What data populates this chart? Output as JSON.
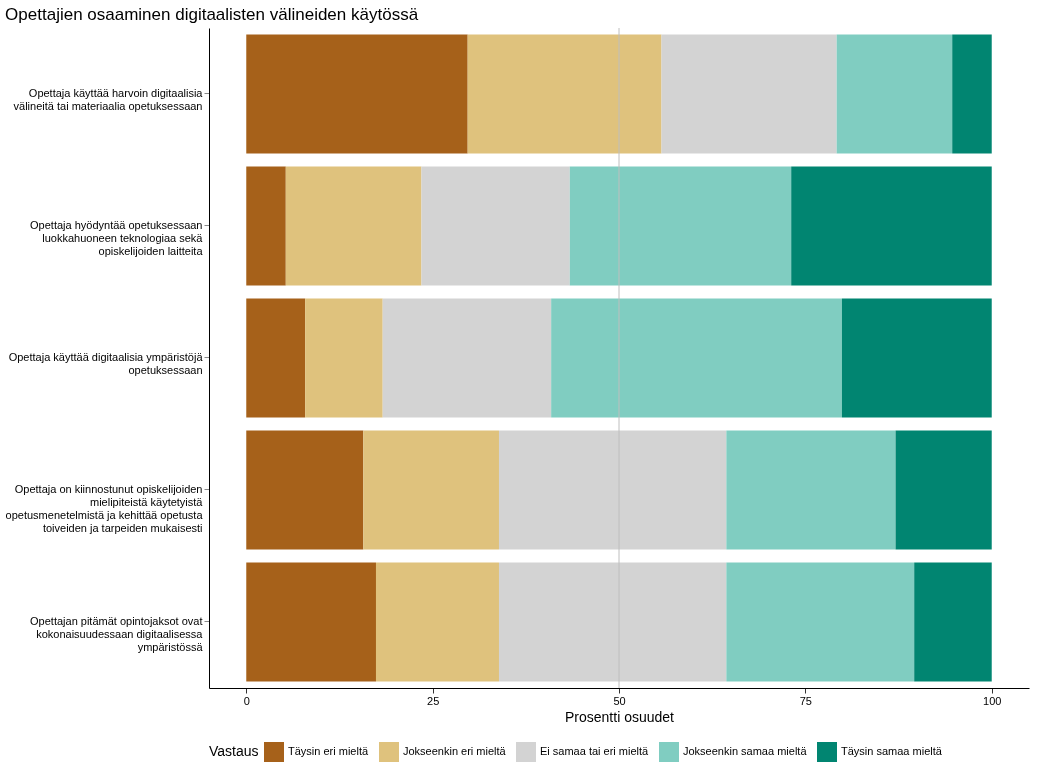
{
  "chart_data": {
    "type": "bar",
    "orientation": "horizontal",
    "stacked": true,
    "title": "Opettajien osaaminen digitaalisten välineiden käytössä",
    "xlabel": "Prosentti osuudet",
    "legend_title": "Vastaus",
    "legend": "bottom",
    "grid": false,
    "categories": [
      "Opettaja käyttää harvoin digitaalisia välineitä tai materiaalia opetuksessaan",
      "Opettaja hyödyntää opetuksessaan luokkahuoneen teknologiaa sekä opiskelijoiden laitteita",
      "Opettaja käyttää digitaalisia ympäristöjä opetuksessaan",
      "Opettaja on kiinnostunut opiskelijoiden mielipiteistä käytetyistä opetusmenetelmistä ja kehittää opetusta toiveiden ja tarpeiden mukaisesti",
      "Opettajan pitämät opintojaksot ovat kokonaisuudessaan digitaalisessa ympäristössä"
    ],
    "series": [
      {
        "name": "Täysin eri mieltä",
        "color": "#a6611a",
        "values": [
          29.7,
          5.3,
          7.9,
          15.7,
          17.4
        ]
      },
      {
        "name": "Jokseenkin eri mieltä",
        "color": "#dfc27d",
        "values": [
          26.0,
          18.2,
          10.4,
          18.2,
          16.5
        ]
      },
      {
        "name": "Ei samaa tai eri mieltä",
        "color": "#d3d3d3",
        "values": [
          23.5,
          19.9,
          22.6,
          30.5,
          30.5
        ]
      },
      {
        "name": "Jokseenkin samaa mieltä",
        "color": "#80cdc1",
        "values": [
          15.5,
          29.7,
          39.0,
          22.7,
          25.2
        ]
      },
      {
        "name": "Täysin samaa mieltä",
        "color": "#018571",
        "values": [
          5.3,
          26.9,
          20.1,
          12.9,
          10.4
        ]
      }
    ],
    "xlim": [
      -5,
      105
    ],
    "xticks": [
      0,
      25,
      50,
      75,
      100
    ],
    "ref_lines": [
      {
        "axis": "x",
        "value": 50,
        "color": "#bebebe"
      }
    ]
  }
}
